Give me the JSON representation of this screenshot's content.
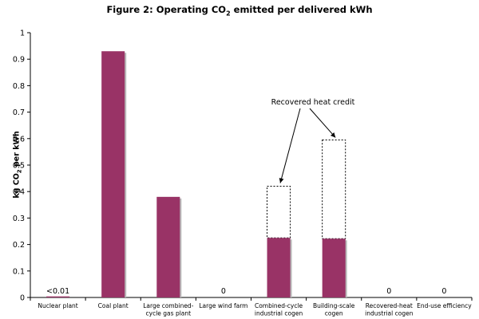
{
  "chart_data": {
    "type": "bar",
    "title": {
      "before": "Figure 2: Operating CO",
      "sub": "2",
      "after": " emitted per delivered kWh"
    },
    "ylabel": {
      "before": "kg CO",
      "sub": "2",
      "after": " per kWh"
    },
    "xlabel": "",
    "ylim": [
      0,
      1
    ],
    "yticks": [
      "0",
      "0.1",
      "0.2",
      "0.3",
      "0.4",
      "0.5",
      "0.6",
      "0.7",
      "0.8",
      "0.9",
      "1"
    ],
    "categories": [
      [
        "Nuclear plant"
      ],
      [
        "Coal plant"
      ],
      [
        "Large combined-",
        "cycle gas plant"
      ],
      [
        "Large wind farm"
      ],
      [
        "Combined-cycle",
        "industrial cogen"
      ],
      [
        "Building-scale",
        "cogen"
      ],
      [
        "Recovered-heat",
        "industrial cogen"
      ],
      [
        "End-use efficiency"
      ]
    ],
    "values": [
      0.004,
      0.93,
      0.38,
      0,
      0.225,
      0.222,
      0,
      0
    ],
    "gross_before_credit": [
      null,
      null,
      null,
      null,
      0.42,
      0.595,
      null,
      null
    ],
    "data_labels": [
      "<0.01",
      null,
      null,
      "0",
      null,
      null,
      "0",
      "0"
    ],
    "annotation": "Recovered heat credit",
    "colors": {
      "bar": "#993366",
      "bar_shadow": "#b9b9b9",
      "axis": "#000000"
    },
    "grid": false,
    "legend": "none"
  }
}
